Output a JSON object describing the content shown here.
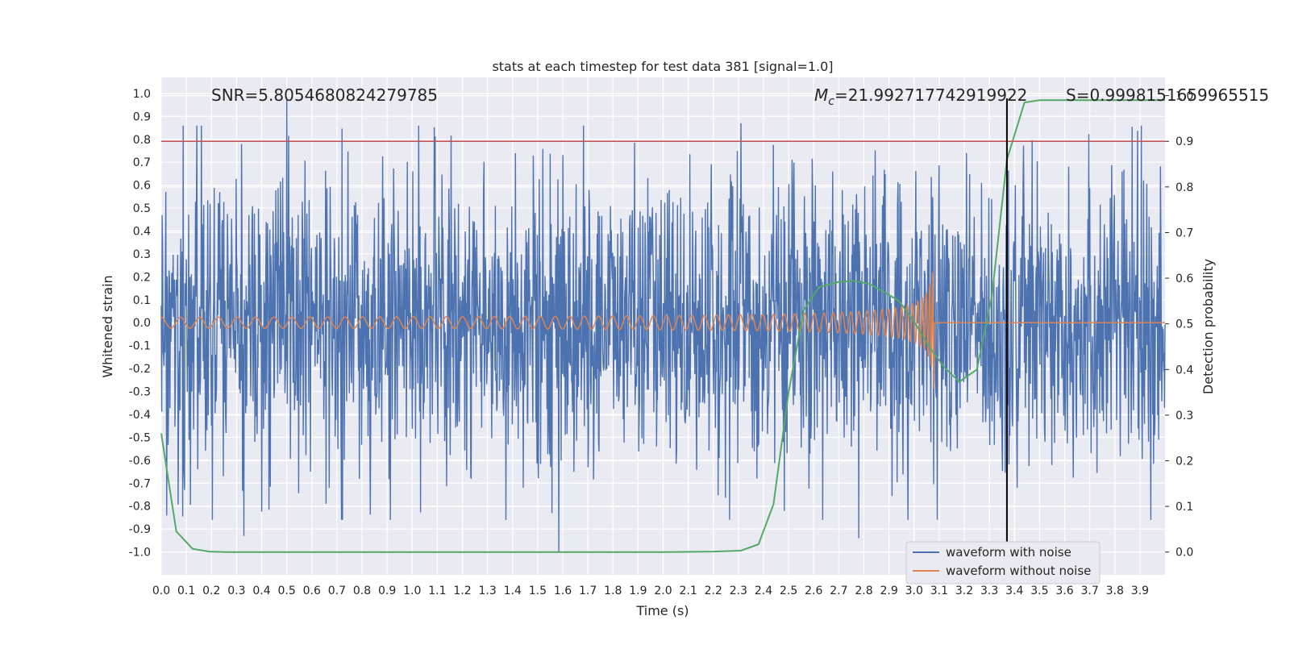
{
  "chart_data": {
    "type": "line",
    "title": "stats at each timestep for test data 381 [signal=1.0]",
    "xlabel": "Time (s)",
    "ylabel_left": "Whitened strain",
    "ylabel_right": "Detection probability",
    "xlim": [
      0.0,
      4.0
    ],
    "ylim_left": [
      -1.1,
      1.07
    ],
    "ylim_right": [
      -0.05,
      1.04
    ],
    "x_ticks": [
      "0.0",
      "0.1",
      "0.2",
      "0.3",
      "0.4",
      "0.5",
      "0.6",
      "0.7",
      "0.8",
      "0.9",
      "1.0",
      "1.1",
      "1.2",
      "1.3",
      "1.4",
      "1.5",
      "1.6",
      "1.7",
      "1.8",
      "1.9",
      "2.0",
      "2.1",
      "2.2",
      "2.3",
      "2.4",
      "2.5",
      "2.6",
      "2.7",
      "2.8",
      "2.9",
      "3.0",
      "3.1",
      "3.2",
      "3.3",
      "3.4",
      "3.5",
      "3.6",
      "3.7",
      "3.8",
      "3.9"
    ],
    "y_ticks_left": [
      "1.0",
      "0.9",
      "0.8",
      "0.7",
      "0.6",
      "0.5",
      "0.4",
      "0.3",
      "0.2",
      "0.1",
      "0.0",
      "-0.1",
      "-0.2",
      "-0.3",
      "-0.4",
      "-0.5",
      "-0.6",
      "-0.7",
      "-0.8",
      "-0.9",
      "-1.0"
    ],
    "y_ticks_right": [
      "1.0",
      "0.9",
      "0.8",
      "0.7",
      "0.6",
      "0.5",
      "0.4",
      "0.3",
      "0.2",
      "0.1",
      "0.0"
    ],
    "annotations": {
      "snr": "SNR=5.8054680824279785",
      "mc_symbol": "M",
      "mc_sub": "c",
      "mc_value": "=21.992717742919922",
      "s": "S=0.9998151659965515"
    },
    "threshold_line": {
      "axis": "right",
      "y": 0.9,
      "color": "#c44e52"
    },
    "marker_line": {
      "x": 3.37,
      "color": "#000000"
    },
    "legend": {
      "placement": "lower-right"
    },
    "grid": true,
    "series": [
      {
        "name": "waveform with noise",
        "axis": "left",
        "color": "#4c72b0",
        "kind": "noise",
        "x_range": [
          0.0,
          4.0
        ],
        "n_points": 2200,
        "amplitude_typical": 0.55,
        "spikes": [
          [
            0.5,
            0.98
          ],
          [
            1.585,
            -1.0
          ],
          [
            0.33,
            -0.93
          ],
          [
            2.78,
            -0.94
          ],
          [
            2.31,
            0.87
          ],
          [
            0.32,
            0.78
          ],
          [
            3.41,
            -0.72
          ]
        ]
      },
      {
        "name": "waveform without noise",
        "axis": "left",
        "color": "#dd8452",
        "kind": "chirp",
        "x_range": [
          0.0,
          4.0
        ],
        "merger_time": 3.08,
        "peak_amplitude": 0.32,
        "start_amplitude": 0.015
      },
      {
        "name": "",
        "axis": "right",
        "color": "#55a868",
        "x": [
          0.0,
          0.06,
          0.125,
          0.19,
          0.26,
          0.5,
          1.0,
          1.5,
          2.0,
          2.2,
          2.31,
          2.38,
          2.44,
          2.5,
          2.56,
          2.62,
          2.7,
          2.76,
          2.82,
          2.88,
          2.94,
          3.0,
          3.06,
          3.12,
          3.18,
          3.25,
          3.31,
          3.37,
          3.44,
          3.5,
          3.6,
          4.0
        ],
        "y": [
          0.26,
          0.045,
          0.007,
          0.001,
          0.0,
          0.0,
          0.0,
          0.0,
          0.0,
          0.001,
          0.003,
          0.017,
          0.105,
          0.35,
          0.53,
          0.58,
          0.592,
          0.594,
          0.588,
          0.57,
          0.55,
          0.505,
          0.45,
          0.405,
          0.373,
          0.4,
          0.56,
          0.86,
          0.985,
          0.99,
          0.99,
          0.99
        ]
      }
    ]
  }
}
